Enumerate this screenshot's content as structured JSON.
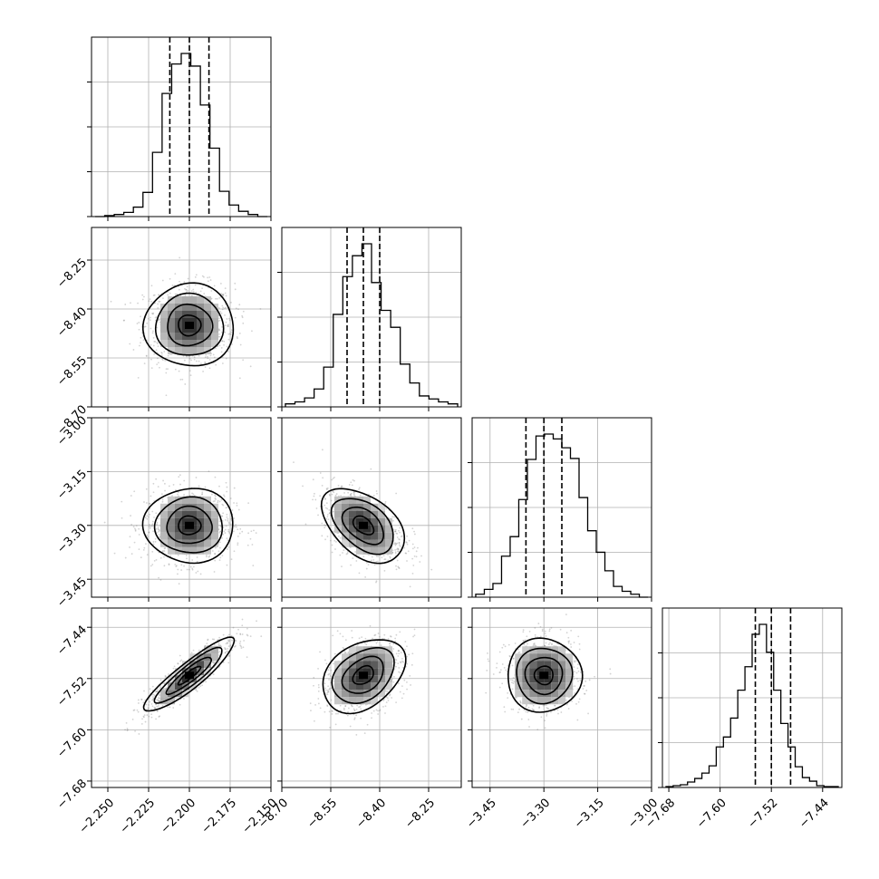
{
  "chart_data": {
    "type": "scatter",
    "kind": "corner-plot",
    "grid": true,
    "params": [
      {
        "mean": -2.2,
        "sd": 0.012,
        "range": [
          -2.26,
          -2.15
        ],
        "ticks": [
          -2.25,
          -2.225,
          -2.2,
          -2.175,
          -2.15
        ],
        "tick_labels": [
          "−2.250",
          "−2.225",
          "−2.200",
          "−2.175",
          "−2.150"
        ],
        "quantiles": [
          -2.212,
          -2.2,
          -2.188
        ]
      },
      {
        "mean": -8.45,
        "sd": 0.055,
        "range": [
          -8.7,
          -8.15
        ],
        "ticks": [
          -8.7,
          -8.55,
          -8.4,
          -8.25
        ],
        "tick_labels": [
          "−8.70",
          "−8.55",
          "−8.40",
          "−8.25"
        ],
        "quantiles": [
          -8.5,
          -8.45,
          -8.4
        ]
      },
      {
        "mean": -3.3,
        "sd": 0.045,
        "range": [
          -3.5,
          -3.0
        ],
        "ticks": [
          -3.45,
          -3.3,
          -3.15,
          -3.0
        ],
        "tick_labels": [
          "−3.45",
          "−3.30",
          "−3.15",
          "−3.00"
        ],
        "quantiles": [
          -3.35,
          -3.3,
          -3.25
        ]
      },
      {
        "mean": -7.515,
        "sd": 0.025,
        "range": [
          -7.69,
          -7.41
        ],
        "ticks": [
          -7.68,
          -7.6,
          -7.52,
          -7.44
        ],
        "tick_labels": [
          "−7.68",
          "−7.60",
          "−7.52",
          "−7.44"
        ],
        "quantiles": [
          -7.545,
          -7.52,
          -7.49
        ]
      }
    ],
    "correlations": {
      "1,0": 0.0,
      "2,0": 0.0,
      "2,1": -0.45,
      "3,0": 0.9,
      "3,1": 0.35,
      "3,2": 0.0
    },
    "histograms": [
      [
        0,
        1,
        2,
        4,
        9,
        23,
        61,
        117,
        145,
        155,
        143,
        106,
        65,
        24,
        11,
        5,
        2,
        0
      ],
      [
        3,
        5,
        9,
        18,
        40,
        93,
        131,
        152,
        164,
        125,
        97,
        80,
        43,
        24,
        11,
        8,
        5,
        3
      ],
      [
        3,
        8,
        14,
        42,
        62,
        100,
        141,
        165,
        167,
        162,
        153,
        142,
        102,
        68,
        46,
        27,
        11,
        6,
        3,
        0
      ],
      [
        1,
        2,
        3,
        6,
        10,
        16,
        24,
        45,
        56,
        77,
        108,
        134,
        170,
        181,
        150,
        108,
        71,
        45,
        23,
        11,
        7,
        2,
        1,
        1
      ]
    ],
    "colors": {
      "points": "#808080",
      "lines": "#000000",
      "grid": "#b0b0b0"
    }
  }
}
